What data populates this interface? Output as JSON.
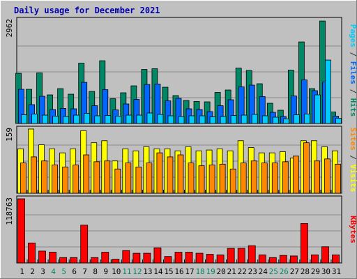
{
  "chart_data": {
    "type": "bar",
    "title": "Daily usage for December 2021",
    "categories": [
      "1",
      "2",
      "3",
      "4",
      "5",
      "6",
      "7",
      "8",
      "9",
      "10",
      "11",
      "12",
      "13",
      "14",
      "15",
      "16",
      "17",
      "18",
      "19",
      "20",
      "21",
      "22",
      "23",
      "24",
      "25",
      "26",
      "27",
      "28",
      "29",
      "30",
      "31"
    ],
    "weekend_days": [
      "4",
      "5",
      "11",
      "12",
      "18",
      "19",
      "25",
      "26"
    ],
    "panels": [
      {
        "id": "hits-files-pages",
        "max_label": "2962",
        "ymax": 2962,
        "grid": true,
        "label_parts": [
          {
            "text": "Pages",
            "color": "#00ccff"
          },
          {
            "text": " / ",
            "color": "#333333"
          },
          {
            "text": "Files",
            "color": "#0066ff"
          },
          {
            "text": " / ",
            "color": "#333333"
          },
          {
            "text": "Hits",
            "color": "#008866"
          }
        ],
        "series": [
          {
            "name": "Hits",
            "color": "#008866",
            "values": [
              1440,
              980,
              1450,
              820,
              1000,
              840,
              1730,
              920,
              1800,
              710,
              880,
              1080,
              1550,
              1570,
              1040,
              800,
              660,
              630,
              620,
              890,
              960,
              1590,
              1520,
              1140,
              580,
              380,
              1530,
              2340,
              1000,
              2940,
              330
            ]
          },
          {
            "name": "Files",
            "color": "#0066ff",
            "values": [
              980,
              540,
              780,
              400,
              430,
              420,
              1180,
              510,
              970,
              390,
              560,
              690,
              1120,
              1130,
              650,
              720,
              420,
              400,
              340,
              510,
              680,
              1050,
              1100,
              770,
              320,
              200,
              790,
              1250,
              940,
              1190,
              210
            ]
          },
          {
            "name": "Pages",
            "color": "#00ccff",
            "values": [
              250,
              270,
              240,
              210,
              200,
              240,
              290,
              220,
              230,
              210,
              240,
              240,
              300,
              260,
              220,
              200,
              220,
              220,
              190,
              200,
              230,
              240,
              260,
              220,
              180,
              130,
              250,
              270,
              820,
              1820,
              150
            ]
          }
        ]
      },
      {
        "id": "visits-sites",
        "max_label": "159",
        "ymax": 159,
        "grid": true,
        "label_parts": [
          {
            "text": "Sites",
            "color": "#ff8800"
          },
          {
            "text": " / ",
            "color": "#333333"
          },
          {
            "text": "Visits",
            "color": "#ffff00"
          }
        ],
        "series": [
          {
            "name": "Visits",
            "color": "#ffff00",
            "values": [
              110,
              159,
              120,
              110,
              100,
              110,
              155,
              125,
              130,
              80,
              110,
              105,
              115,
              110,
              110,
              105,
              115,
              105,
              107,
              110,
              105,
              130,
              113,
              100,
              100,
              103,
              87,
              130,
              130,
              115,
              105
            ]
          },
          {
            "name": "Sites",
            "color": "#ff8800",
            "values": [
              75,
              90,
              80,
              70,
              65,
              70,
              95,
              78,
              80,
              60,
              75,
              65,
              75,
              100,
              90,
              95,
              75,
              68,
              70,
              72,
              60,
              75,
              80,
              75,
              75,
              78,
              92,
              125,
              80,
              85,
              72
            ]
          }
        ]
      },
      {
        "id": "kbytes",
        "max_label": "118763",
        "ymax": 118763,
        "grid": true,
        "label_parts": [
          {
            "text": "KBytes",
            "color": "#ff0000"
          }
        ],
        "series": [
          {
            "name": "KBytes",
            "color": "#ff0000",
            "values": [
              118763,
              37000,
              22000,
              20000,
              10000,
              10000,
              70000,
              10000,
              20000,
              7000,
              23000,
              18000,
              18000,
              28000,
              12000,
              20000,
              20000,
              18000,
              16000,
              15000,
              27000,
              27000,
              32000,
              15000,
              10000,
              14000,
              13000,
              73000,
              15000,
              30000,
              15000
            ]
          }
        ]
      }
    ]
  },
  "colors": {
    "page_bg": "#c0c0c0",
    "title": "#0000aa",
    "weekend_day": "#008866",
    "weekday": "#000000"
  }
}
